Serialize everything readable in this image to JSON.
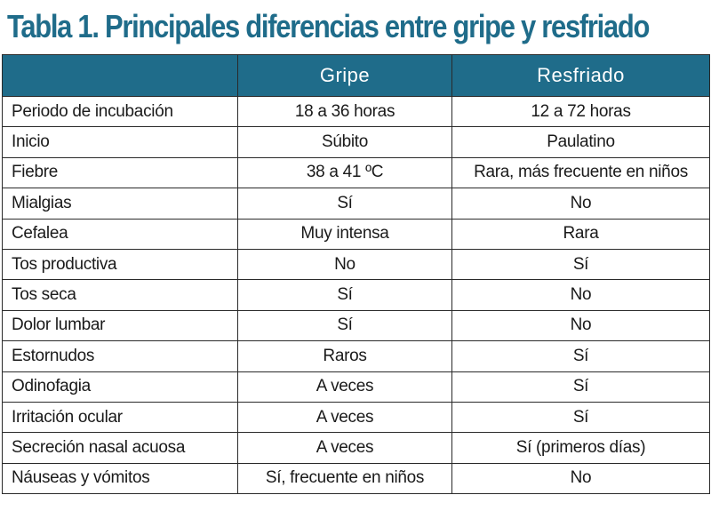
{
  "title": "Tabla 1. Principales diferencias entre gripe y resfriado",
  "table": {
    "headers": [
      "",
      "Gripe",
      "Resfriado"
    ],
    "rows": [
      {
        "feature": "Periodo de incubación",
        "gripe": "18 a 36 horas",
        "resfriado": "12 a 72 horas"
      },
      {
        "feature": "Inicio",
        "gripe": "Súbito",
        "resfriado": "Paulatino"
      },
      {
        "feature": "Fiebre",
        "gripe": "38 a 41 ºC",
        "resfriado": "Rara, más frecuente en niños"
      },
      {
        "feature": "Mialgias",
        "gripe": "Sí",
        "resfriado": "No"
      },
      {
        "feature": "Cefalea",
        "gripe": "Muy intensa",
        "resfriado": "Rara"
      },
      {
        "feature": "Tos productiva",
        "gripe": "No",
        "resfriado": "Sí"
      },
      {
        "feature": "Tos seca",
        "gripe": "Sí",
        "resfriado": "No"
      },
      {
        "feature": "Dolor lumbar",
        "gripe": "Sí",
        "resfriado": "No"
      },
      {
        "feature": "Estornudos",
        "gripe": "Raros",
        "resfriado": "Sí"
      },
      {
        "feature": "Odinofagia",
        "gripe": "A veces",
        "resfriado": "Sí"
      },
      {
        "feature": "Irritación ocular",
        "gripe": "A veces",
        "resfriado": "Sí"
      },
      {
        "feature": "Secreción nasal acuosa",
        "gripe": "A veces",
        "resfriado": "Sí (primeros días)"
      },
      {
        "feature": "Náuseas y vómitos",
        "gripe": "Sí, frecuente en niños",
        "resfriado": "No"
      }
    ]
  },
  "colors": {
    "accent": "#1f6c8a",
    "header_text": "#ffffff",
    "border": "#2a2a2a"
  }
}
